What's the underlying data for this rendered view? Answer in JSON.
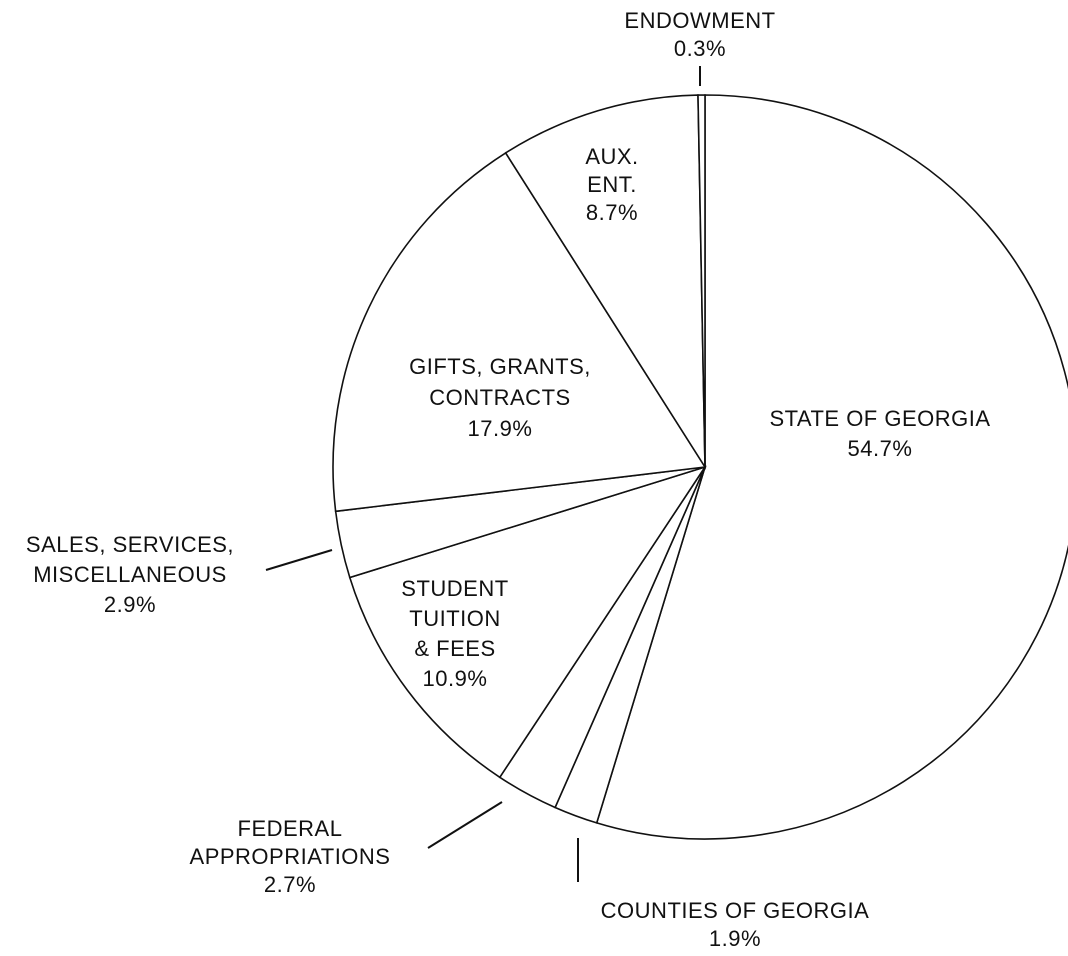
{
  "chart_data": {
    "type": "pie",
    "categories": [
      [
        "STATE OF GEORGIA"
      ],
      [
        "COUNTIES OF GEORGIA"
      ],
      [
        "FEDERAL",
        "APPROPRIATIONS"
      ],
      [
        "STUDENT",
        "TUITION",
        "& FEES"
      ],
      [
        "SALES, SERVICES,",
        "MISCELLANEOUS"
      ],
      [
        "GIFTS, GRANTS,",
        "CONTRACTS"
      ],
      [
        "AUX.",
        "ENT."
      ],
      [
        "ENDOWMENT"
      ]
    ],
    "values": [
      54.7,
      1.9,
      2.7,
      10.9,
      2.9,
      17.9,
      8.7,
      0.3
    ],
    "value_labels": [
      "54.7%",
      "1.9%",
      "2.7%",
      "10.9%",
      "2.9%",
      "17.9%",
      "8.7%",
      "0.3%"
    ]
  }
}
